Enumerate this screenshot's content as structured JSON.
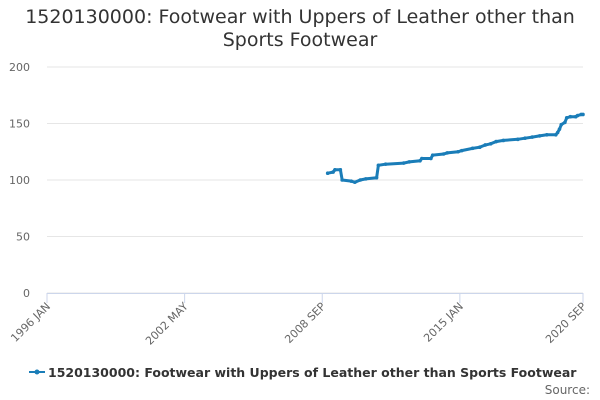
{
  "chart_data": {
    "type": "line",
    "title": "1520130000: Footwear with Uppers of Leather other than Sports Footwear",
    "source": "Source:",
    "xlim": [
      "1996-01",
      "2020-09"
    ],
    "xticks": [
      {
        "value": "1996-01",
        "label": "1996 JAN"
      },
      {
        "value": "2002-05",
        "label": "2002 MAY"
      },
      {
        "value": "2008-09",
        "label": "2008 SEP"
      },
      {
        "value": "2015-01",
        "label": "2015 JAN"
      },
      {
        "value": "2020-09",
        "label": "2020 SEP"
      }
    ],
    "ylim": [
      0,
      200
    ],
    "yticks": [
      0,
      50,
      100,
      150,
      200
    ],
    "grid": true,
    "x": [
      "2008-12",
      "2009-03",
      "2009-04",
      "2009-07",
      "2009-08",
      "2010-01",
      "2010-03",
      "2010-06",
      "2010-09",
      "2011-03",
      "2011-04",
      "2011-08",
      "2012-06",
      "2012-09",
      "2013-03",
      "2013-04",
      "2013-09",
      "2013-10",
      "2014-04",
      "2014-06",
      "2014-12",
      "2015-02",
      "2015-08",
      "2015-12",
      "2016-03",
      "2016-06",
      "2016-09",
      "2017-01",
      "2017-09",
      "2018-01",
      "2018-05",
      "2018-09",
      "2019-01",
      "2019-06",
      "2019-07",
      "2019-08",
      "2019-09",
      "2019-11",
      "2019-12",
      "2020-02",
      "2020-05",
      "2020-06",
      "2020-08",
      "2020-09"
    ],
    "series": [
      {
        "name": "1520130000: Footwear with Uppers of Leather other than Sports Footwear",
        "color": "#1a7db8",
        "values": [
          106,
          107,
          109,
          109,
          100,
          99,
          98,
          100,
          101,
          102,
          113,
          114,
          115,
          116,
          117,
          119,
          119,
          122,
          123,
          124,
          125,
          126,
          128,
          129,
          131,
          132,
          134,
          135,
          136,
          137,
          138,
          139,
          140,
          140,
          142,
          145,
          149,
          151,
          155,
          156,
          156,
          157,
          158,
          158
        ]
      }
    ]
  }
}
